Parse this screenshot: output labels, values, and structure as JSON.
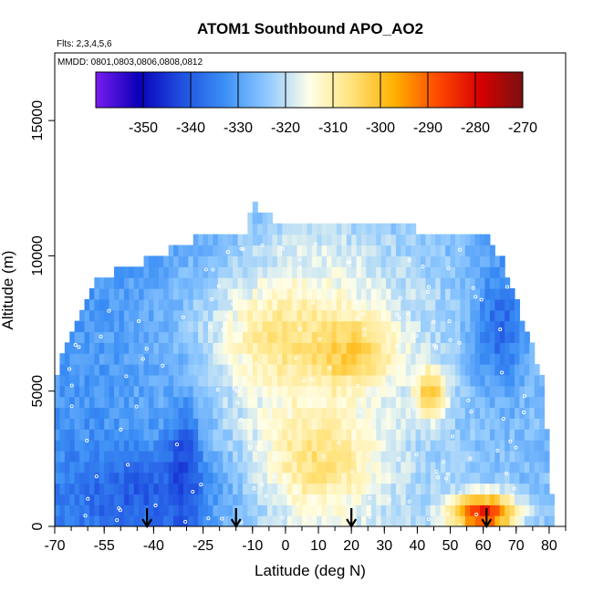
{
  "chart_data": {
    "type": "heatmap",
    "title": "ATOM1 Southbound APO_AO2",
    "subtitle_flights": "Flts: 2,3,4,5,6",
    "subtitle_dates": "MMDD: 0801,0803,0806,0808,0812",
    "xlabel": "Latitude (deg N)",
    "ylabel": "Altitude (m)",
    "xlim": [
      -70,
      85
    ],
    "ylim": [
      0,
      17500
    ],
    "x_ticks": [
      -70,
      -55,
      -40,
      -25,
      -10,
      0,
      10,
      20,
      30,
      40,
      50,
      60,
      70,
      80
    ],
    "x_tick_labels": [
      "-70",
      "-55",
      "-40",
      "-25",
      "-10",
      "0",
      "10",
      "20",
      "30",
      "40",
      "50",
      "60",
      "70",
      "80"
    ],
    "y_ticks": [
      0,
      5000,
      10000,
      15000
    ],
    "y_tick_labels": [
      "0",
      "5000",
      "10000",
      "15000"
    ],
    "colorbar": {
      "min": -360,
      "max": -270,
      "ticks": [
        -350,
        -340,
        -330,
        -320,
        -310,
        -300,
        -290,
        -280,
        -270
      ],
      "tick_labels": [
        "-350",
        "-340",
        "-330",
        "-320",
        "-310",
        "-300",
        "-290",
        "-280",
        "-270"
      ],
      "colors": [
        "#7a1cf0",
        "#0a00b8",
        "#1f4fe0",
        "#3a8ef5",
        "#8ec8ff",
        "#ffffe8",
        "#ffe27a",
        "#ffb000",
        "#ff4a00",
        "#d80000",
        "#7a1010"
      ]
    },
    "profile_arrows_latitude": [
      -42,
      -15,
      20,
      61
    ],
    "altitude_envelope": [
      {
        "lat": -70,
        "top": 5500
      },
      {
        "lat": -67,
        "top": 6500
      },
      {
        "lat": -62,
        "top": 8000
      },
      {
        "lat": -58,
        "top": 9200
      },
      {
        "lat": -52,
        "top": 9400
      },
      {
        "lat": -47,
        "top": 9500
      },
      {
        "lat": -40,
        "top": 10000
      },
      {
        "lat": -32,
        "top": 10400
      },
      {
        "lat": -24,
        "top": 10800
      },
      {
        "lat": -12,
        "top": 11000
      },
      {
        "lat": -10,
        "top": 12000
      },
      {
        "lat": 0,
        "top": 11000
      },
      {
        "lat": 20,
        "top": 11100
      },
      {
        "lat": 40,
        "top": 11000
      },
      {
        "lat": 60,
        "top": 10900
      },
      {
        "lat": 66,
        "top": 9800
      },
      {
        "lat": 70,
        "top": 8300
      },
      {
        "lat": 74,
        "top": 7000
      },
      {
        "lat": 78,
        "top": 5500
      },
      {
        "lat": 81,
        "top": 1000
      }
    ],
    "field_anomalies": [
      {
        "lat": 60,
        "alt": 500,
        "value": -283,
        "r_lat": 10,
        "r_alt": 700
      },
      {
        "lat": 18,
        "alt": 6500,
        "value": -299,
        "r_lat": 14,
        "r_alt": 1200
      },
      {
        "lat": 44,
        "alt": 5000,
        "value": -301,
        "r_lat": 5,
        "r_alt": 900
      },
      {
        "lat": 10,
        "alt": 2500,
        "value": -306,
        "r_lat": 16,
        "r_alt": 1800
      },
      {
        "lat": 0,
        "alt": 7000,
        "value": -307,
        "r_lat": 18,
        "r_alt": 1600
      },
      {
        "lat": -45,
        "alt": 1200,
        "value": -340,
        "r_lat": 25,
        "r_alt": 1800
      },
      {
        "lat": -31,
        "alt": 2000,
        "value": -343,
        "r_lat": 5,
        "r_alt": 2500
      },
      {
        "lat": 65,
        "alt": 7500,
        "value": -338,
        "r_lat": 8,
        "r_alt": 2500
      }
    ],
    "background_value_low_lat": -332,
    "background_value_high_lat": -326,
    "background_value_mid": -316
  }
}
